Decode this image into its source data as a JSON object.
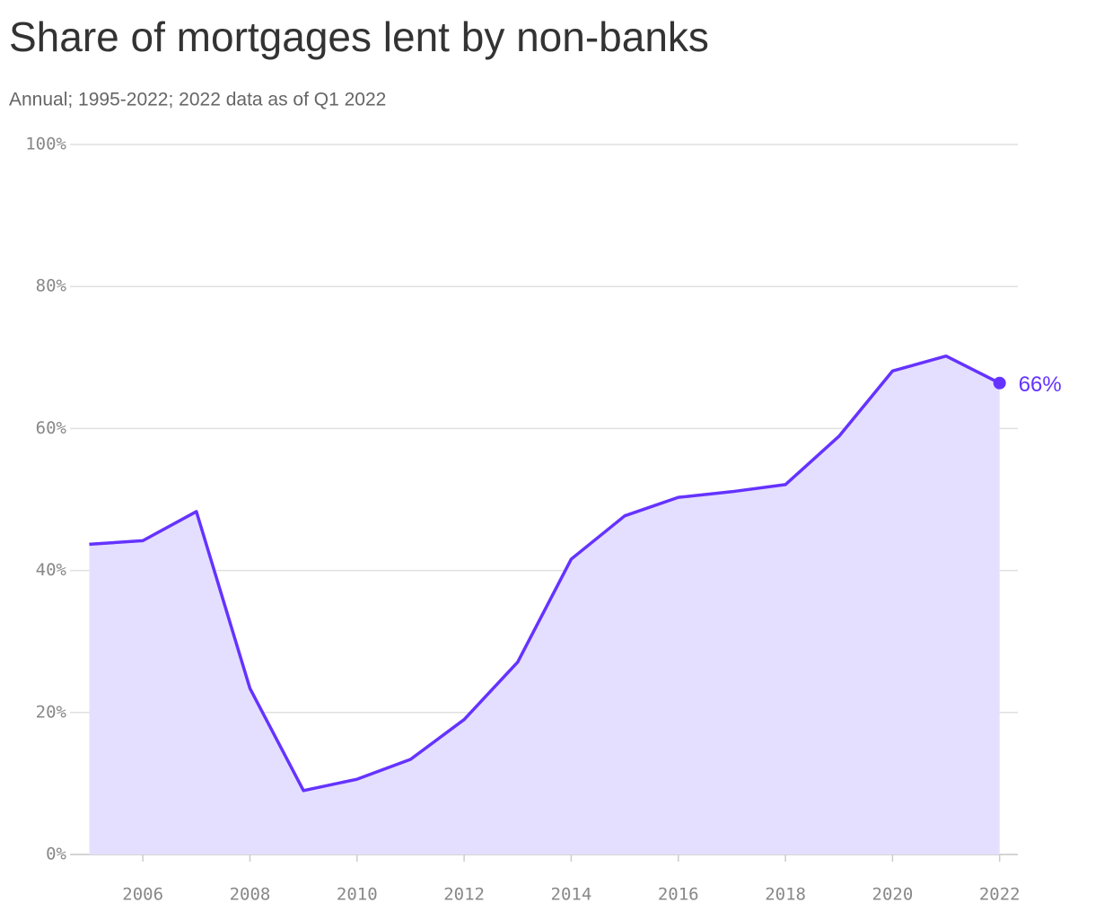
{
  "chart_data": {
    "type": "area",
    "title": "Share of mortgages lent by non-banks",
    "subtitle": "Annual; 1995-2022; 2022 data as of Q1 2022",
    "x": [
      2005,
      2006,
      2007,
      2008,
      2009,
      2010,
      2011,
      2012,
      2013,
      2014,
      2015,
      2016,
      2017,
      2018,
      2019,
      2020,
      2021,
      2022
    ],
    "values": [
      43.7,
      44.2,
      48.3,
      23.4,
      9.0,
      10.6,
      13.4,
      19.0,
      27.1,
      41.6,
      47.7,
      50.3,
      51.1,
      52.1,
      58.9,
      68.1,
      70.2,
      66.4
    ],
    "value_labels": [
      null,
      null,
      null,
      null,
      null,
      null,
      null,
      null,
      null,
      null,
      null,
      null,
      null,
      null,
      null,
      null,
      null,
      "66%"
    ],
    "color": "#6533ff",
    "fill_color": "#e5dfff",
    "xlim": [
      2004.64,
      2022.34
    ],
    "xticks": [
      2006,
      2008,
      2010,
      2012,
      2014,
      2016,
      2018,
      2020,
      2022
    ],
    "ylim": [
      0,
      100
    ],
    "yticks": [
      {
        "value": 0,
        "label": "0%"
      },
      {
        "value": 20,
        "label": "20%"
      },
      {
        "value": 40,
        "label": "40%"
      },
      {
        "value": 60,
        "label": "60%"
      },
      {
        "value": 80,
        "label": "80%"
      },
      {
        "value": 100,
        "label": "100%"
      }
    ],
    "grid": true
  }
}
